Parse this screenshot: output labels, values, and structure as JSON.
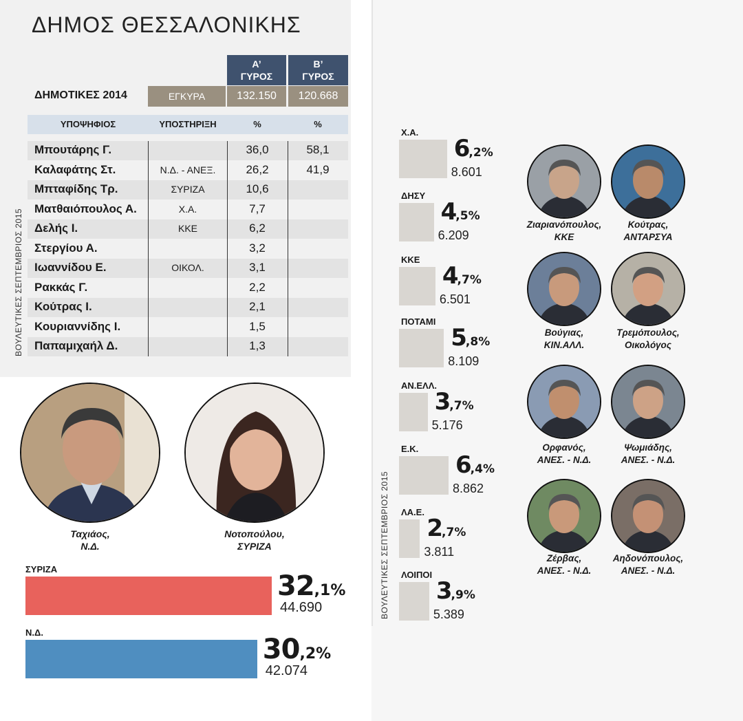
{
  "title": "ΔΗΜΟΣ ΘΕΣΣΑΛΟΝΙΚΗΣ",
  "table": {
    "round_a": [
      "Α’",
      "ΓΥΡΟΣ"
    ],
    "round_b": [
      "Β’",
      "ΓΥΡΟΣ"
    ],
    "row_label": "ΔΗΜΟΤΙΚΕΣ 2014",
    "valid_label": "ΕΓΚΥΡΑ",
    "valid_a": "132.150",
    "valid_b": "120.668",
    "col_candidate": "ΥΠΟΨΗΦΙΟΣ",
    "col_support": "ΥΠΟΣΤΗΡΙΞΗ",
    "col_pct_a": "%",
    "col_pct_b": "%",
    "rows": [
      {
        "name": "Μπουτάρης Γ.",
        "support": "",
        "a": "36,0",
        "b": "58,1"
      },
      {
        "name": "Καλαφάτης Στ.",
        "support": "Ν.Δ. - ΑΝΕΞ.",
        "a": "26,2",
        "b": "41,9"
      },
      {
        "name": "Μπταφίδης Τρ.",
        "support": "ΣΥΡΙΖΑ",
        "a": "10,6",
        "b": ""
      },
      {
        "name": "Ματθαιόπουλος Α.",
        "support": "Χ.Α.",
        "a": "7,7",
        "b": ""
      },
      {
        "name": "Δελής Ι.",
        "support": "ΚΚΕ",
        "a": "6,2",
        "b": ""
      },
      {
        "name": "Στεργίου Α.",
        "support": "",
        "a": "3,2",
        "b": ""
      },
      {
        "name": "Ιωαννίδου Ε.",
        "support": "ΟΙΚΟΛ.",
        "a": "3,1",
        "b": ""
      },
      {
        "name": "Ρακκάς Γ.",
        "support": "",
        "a": "2,2",
        "b": ""
      },
      {
        "name": "Κούτρας Ι.",
        "support": "",
        "a": "2,1",
        "b": ""
      },
      {
        "name": "Κουριαννίδης Ι.",
        "support": "",
        "a": "1,5",
        "b": ""
      },
      {
        "name": "Παπαμιχαήλ Δ.",
        "support": "",
        "a": "1,3",
        "b": ""
      }
    ]
  },
  "side_label": "ΒΟΥΛΕΥΤΙΚΕΣ ΣΕΠΤΕΜΒΡΙΟΣ 2015",
  "main_candidates": [
    {
      "name": "Ταχιάος,",
      "party": "Ν.Δ."
    },
    {
      "name": "Νοτοπούλου,",
      "party": "ΣΥΡΙΖΑ"
    }
  ],
  "chart_data": [
    {
      "type": "bar",
      "categories": [
        "ΣΥΡΙΖΑ",
        "Ν.Δ."
      ],
      "values": [
        32.1,
        30.2
      ],
      "labels": [
        [
          "32",
          ",1%"
        ],
        [
          "30",
          ",2%"
        ]
      ],
      "votes": [
        "44.690",
        "42.074"
      ],
      "colors": [
        "#e8625c",
        "#4f8ec0"
      ],
      "xlim": [
        0,
        32.1
      ]
    },
    {
      "type": "bar",
      "categories": [
        "Χ.Α.",
        "ΔΗΣΥ",
        "ΚΚΕ",
        "ΠΟΤΑΜΙ",
        "ΑΝ.ΕΛΛ.",
        "Ε.Κ.",
        "ΛΑ.Ε.",
        "ΛΟΙΠΟΙ"
      ],
      "values": [
        6.2,
        4.5,
        4.7,
        5.8,
        3.7,
        6.4,
        2.7,
        3.9
      ],
      "labels": [
        [
          "6",
          ",2%"
        ],
        [
          "4",
          ",5%"
        ],
        [
          "4",
          ",7%"
        ],
        [
          "5",
          ",8%"
        ],
        [
          "3",
          ",7%"
        ],
        [
          "6",
          ",4%"
        ],
        [
          "2",
          ",7%"
        ],
        [
          "3",
          ",9%"
        ]
      ],
      "votes": [
        "8.601",
        "6.209",
        "6.501",
        "8.109",
        "5.176",
        "8.862",
        "3.811",
        "5.389"
      ],
      "color": "#d9d6d1"
    }
  ],
  "mps": [
    {
      "name": "Ζιαριανόπουλος,",
      "party": "ΚΚΕ",
      "bg": "#9aa0a6",
      "skin": "#c8a48a"
    },
    {
      "name": "Κούτρας,",
      "party": "ΑΝΤΑΡΣΥΑ",
      "bg": "#3d6f9a",
      "skin": "#b98a6a"
    },
    {
      "name": "Βούγιας,",
      "party": "ΚΙΝ.ΑΛΛ.",
      "bg": "#6c7f99",
      "skin": "#c89a7c"
    },
    {
      "name": "Τρεμόπουλος,",
      "party": "Οικολόγος",
      "bg": "#b6b1a6",
      "skin": "#d2a083"
    },
    {
      "name": "Ορφανός,",
      "party": "ΑΝΕΣ. - Ν.Δ.",
      "bg": "#8a9bb3",
      "skin": "#c08f6e"
    },
    {
      "name": "Ψωμιάδης,",
      "party": "ΑΝΕΣ. - Ν.Δ.",
      "bg": "#7b8691",
      "skin": "#cda286"
    },
    {
      "name": "Ζέρβας,",
      "party": "ΑΝΕΣ. - Ν.Δ.",
      "bg": "#6f8a62",
      "skin": "#c9997a"
    },
    {
      "name": "Αηδονόπουλος,",
      "party": "ΑΝΕΣ. - Ν.Δ.",
      "bg": "#7a6e66",
      "skin": "#c49175"
    }
  ]
}
